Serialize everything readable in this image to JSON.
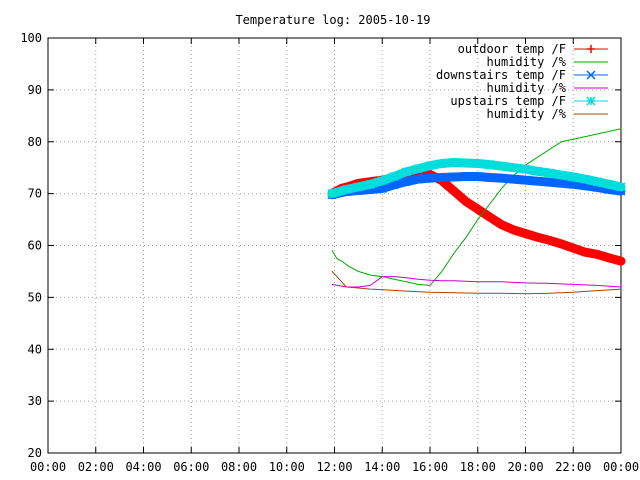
{
  "chart_data": {
    "type": "line",
    "title": "Temperature log: 2005-10-19",
    "xlabel": "",
    "ylabel": "",
    "xlim": [
      "00:00",
      "24:00"
    ],
    "ylim": [
      20,
      100
    ],
    "grid": true,
    "legend_position": "top-right",
    "x_ticks": [
      "00:00",
      "02:00",
      "04:00",
      "06:00",
      "08:00",
      "10:00",
      "12:00",
      "14:00",
      "16:00",
      "18:00",
      "20:00",
      "22:00",
      "00:00"
    ],
    "y_ticks": [
      "20",
      "30",
      "40",
      "50",
      "60",
      "70",
      "80",
      "90",
      "100"
    ],
    "series": [
      {
        "name": "outdoor temp /F",
        "color": "#ff0000",
        "marker": "plus",
        "thick": true,
        "x": [
          11.9,
          12.0,
          12.3,
          12.7,
          13.0,
          13.5,
          14.0,
          14.5,
          15.0,
          15.5,
          16.0,
          16.5,
          17.0,
          17.5,
          18.0,
          18.5,
          19.0,
          19.5,
          20.0,
          20.5,
          21.0,
          21.5,
          22.0,
          22.5,
          23.0,
          23.5,
          24.0
        ],
        "y": [
          70.0,
          70.3,
          71.0,
          71.5,
          72.0,
          72.3,
          72.6,
          73.0,
          73.3,
          73.6,
          73.7,
          72.5,
          70.5,
          68.5,
          67.0,
          65.5,
          64.0,
          63.0,
          62.3,
          61.6,
          61.0,
          60.3,
          59.5,
          58.7,
          58.3,
          57.6,
          57.0
        ]
      },
      {
        "name": "humidity /%",
        "color": "#00aa00",
        "marker": "none",
        "thick": false,
        "x": [
          11.9,
          12.1,
          12.3,
          12.6,
          13.0,
          13.5,
          14.0,
          14.5,
          15.0,
          15.5,
          16.0,
          16.5,
          17.0,
          17.5,
          18.0,
          18.5,
          19.0,
          19.5,
          20.0,
          20.5,
          21.0,
          21.5,
          22.0,
          22.5,
          23.0,
          23.5,
          24.0
        ],
        "y": [
          59.0,
          57.5,
          57.0,
          56.0,
          55.0,
          54.3,
          54.0,
          53.5,
          53.0,
          52.5,
          52.3,
          55.0,
          58.5,
          61.5,
          65.0,
          68.0,
          71.0,
          73.5,
          75.5,
          77.0,
          78.5,
          80.0,
          80.5,
          81.0,
          81.5,
          82.0,
          82.5
        ]
      },
      {
        "name": "downstairs temp /F",
        "color": "#0066ff",
        "marker": "cross",
        "thick": true,
        "x": [
          11.9,
          12.5,
          13.0,
          13.5,
          14.0,
          14.5,
          15.0,
          15.5,
          16.0,
          16.5,
          17.0,
          17.5,
          18.0,
          18.5,
          19.0,
          19.5,
          20.0,
          20.5,
          21.0,
          21.5,
          22.0,
          22.5,
          23.0,
          23.5,
          24.0
        ],
        "y": [
          69.8,
          70.4,
          70.6,
          70.8,
          71.0,
          71.7,
          72.3,
          72.8,
          73.0,
          73.1,
          73.2,
          73.3,
          73.3,
          73.1,
          73.0,
          72.8,
          72.6,
          72.4,
          72.2,
          72.0,
          71.8,
          71.5,
          71.2,
          70.8,
          70.5
        ]
      },
      {
        "name": "humidity /%",
        "color": "#cc00cc",
        "marker": "none",
        "thick": false,
        "x": [
          11.9,
          12.5,
          13.0,
          13.5,
          14.0,
          14.5,
          15.0,
          15.5,
          16.0,
          16.5,
          17.0,
          17.5,
          18.0,
          19.0,
          20.0,
          21.0,
          22.0,
          23.0,
          24.0
        ],
        "y": [
          52.5,
          52.0,
          52.0,
          52.3,
          54.0,
          54.0,
          53.8,
          53.5,
          53.3,
          53.2,
          53.2,
          53.1,
          53.0,
          53.0,
          52.8,
          52.7,
          52.5,
          52.3,
          52.0
        ]
      },
      {
        "name": "upstairs temp /F",
        "color": "#00dddd",
        "marker": "star",
        "thick": true,
        "x": [
          11.9,
          12.5,
          13.0,
          13.5,
          14.0,
          14.5,
          15.0,
          15.5,
          16.0,
          16.5,
          17.0,
          17.5,
          18.0,
          18.5,
          19.0,
          19.5,
          20.0,
          20.5,
          21.0,
          21.5,
          22.0,
          22.5,
          23.0,
          23.5,
          24.0
        ],
        "y": [
          70.0,
          70.8,
          71.3,
          71.8,
          72.5,
          73.3,
          74.2,
          74.8,
          75.4,
          75.8,
          76.0,
          75.9,
          75.8,
          75.6,
          75.3,
          75.0,
          74.7,
          74.3,
          74.0,
          73.6,
          73.2,
          72.8,
          72.3,
          71.8,
          71.3
        ]
      },
      {
        "name": "humidity /%",
        "color": "#aa4400",
        "marker": "none",
        "thick": false,
        "x": [
          11.9,
          12.2,
          12.5,
          13.0,
          13.5,
          14.0,
          15.0,
          16.0,
          17.0,
          18.0,
          19.0,
          20.0,
          21.0,
          22.0,
          23.0,
          24.0
        ],
        "y": [
          55.0,
          53.5,
          52.0,
          51.8,
          51.6,
          51.5,
          51.2,
          51.0,
          50.9,
          50.8,
          50.8,
          50.7,
          50.8,
          51.0,
          51.3,
          51.6
        ]
      }
    ]
  }
}
